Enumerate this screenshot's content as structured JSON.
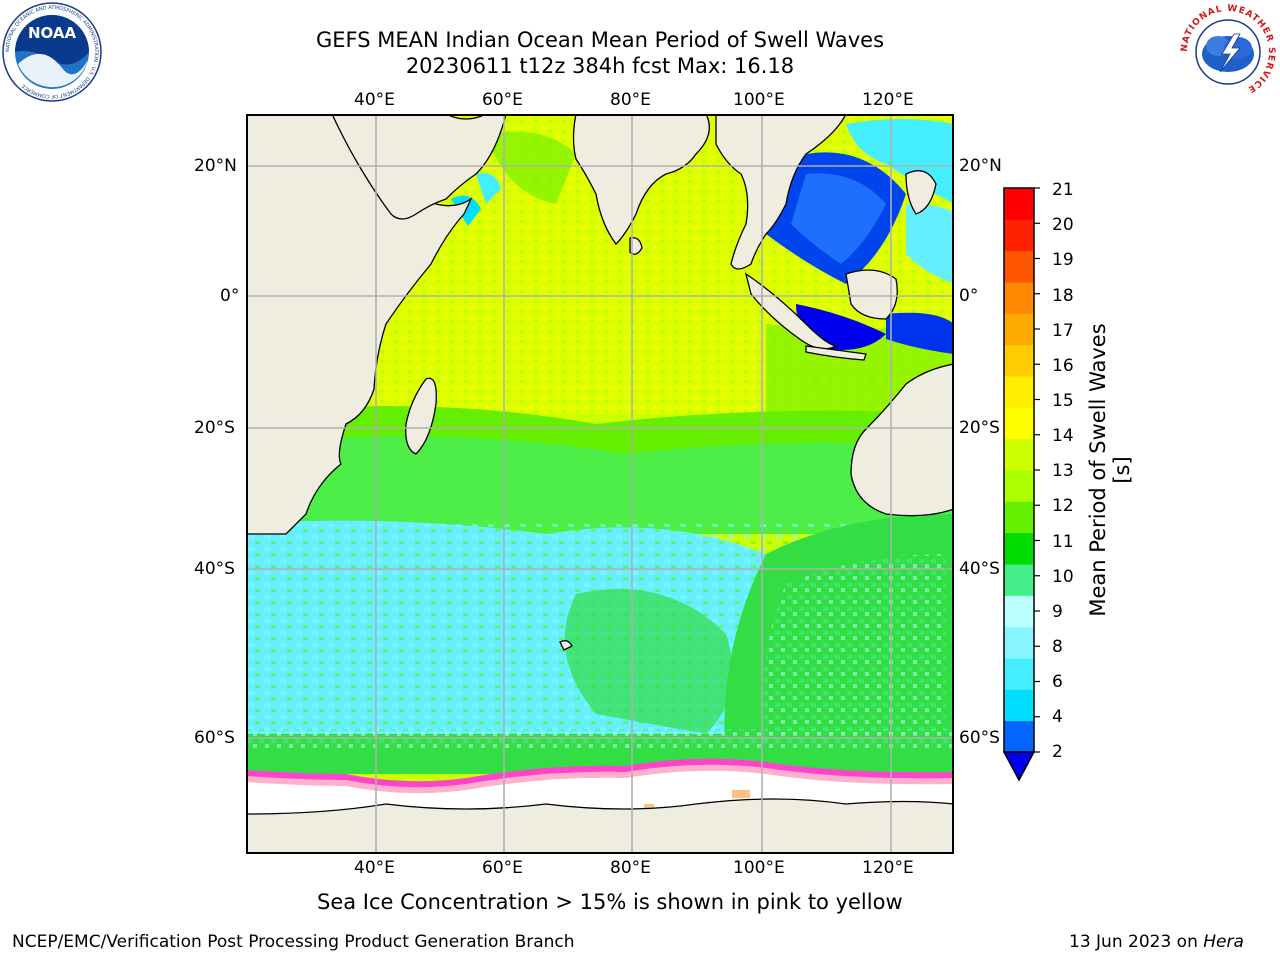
{
  "header": {
    "title_line1": "GEFS MEAN Indian Ocean Mean Period of Swell Waves",
    "title_line2": "20230611 t12z 384h fcst   Max: 16.18"
  },
  "logos": {
    "noaa_text": "NOAA",
    "noaa_ring_text": "NATIONAL OCEANIC AND ATMOSPHERIC ADMINISTRATION · U.S. DEPARTMENT OF COMMERCE",
    "nws_ring_text": "NATIONAL WEATHER SERVICE"
  },
  "map": {
    "lon_ticks": [
      "40°E",
      "60°E",
      "80°E",
      "100°E",
      "120°E"
    ],
    "lat_ticks": [
      "20°N",
      "0°",
      "20°S",
      "40°S",
      "60°S"
    ],
    "lon_range": [
      20,
      130
    ],
    "lat_range": [
      -85,
      28
    ],
    "colors": {
      "land": "#eeeddf",
      "grid": "#b0b0b0",
      "sea_ice": "#ffffff",
      "ice_edge": [
        "#ff44cc",
        "#ffaacc",
        "#ffc080"
      ]
    }
  },
  "colorbar": {
    "label": "Mean Period of Swell Waves [s]",
    "ticks": [
      "2",
      "4",
      "6",
      "8",
      "9",
      "10",
      "11",
      "12",
      "13",
      "14",
      "15",
      "16",
      "17",
      "18",
      "19",
      "20",
      "21"
    ],
    "colors": [
      "#0066ff",
      "#00ddff",
      "#44eeff",
      "#88f6ff",
      "#bbffff",
      "#44ee88",
      "#00dd00",
      "#66ee00",
      "#aaff00",
      "#ccff00",
      "#ffff00",
      "#ffee00",
      "#ffcc00",
      "#ffaa00",
      "#ff8800",
      "#ff5500",
      "#ff2200",
      "#ff0000"
    ],
    "extend_color": "#0000ee"
  },
  "footer": {
    "note": "Sea Ice Concentration > 15% is shown in pink to yellow",
    "credit": "NCEP/EMC/Verification Post Processing Product Generation Branch",
    "date": "13 Jun 2023 on ",
    "machine": "Hera"
  }
}
